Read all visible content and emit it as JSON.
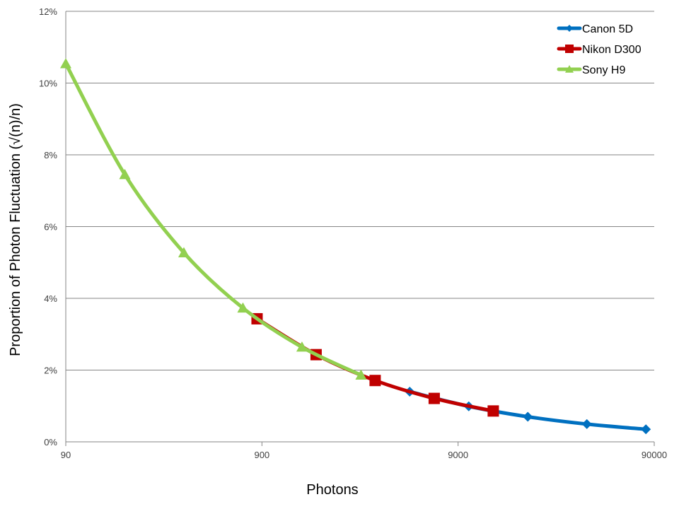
{
  "chart_data": {
    "type": "line",
    "title": "",
    "xlabel": "Photons",
    "ylabel": "Proportion of Photon Fluctuation (√(n)/n)",
    "x_scale": "log",
    "xlim": [
      90,
      90000
    ],
    "ylim": [
      0,
      0.12
    ],
    "x_ticks": [
      90,
      900,
      9000,
      90000
    ],
    "x_tick_labels": [
      "90",
      "900",
      "9000",
      "90000"
    ],
    "y_ticks": [
      0,
      0.02,
      0.04,
      0.06,
      0.08,
      0.1,
      0.12
    ],
    "y_tick_labels": [
      "0%",
      "2%",
      "4%",
      "6%",
      "8%",
      "10%",
      "12%"
    ],
    "grid": "horizontal",
    "legend_position": "top-right",
    "series": [
      {
        "name": "Canon 5D",
        "color": "#0070C0",
        "marker": "diamond",
        "points": [
          {
            "x": 5100,
            "y": 0.014
          },
          {
            "x": 10200,
            "y": 0.0099
          },
          {
            "x": 20400,
            "y": 0.007
          },
          {
            "x": 40800,
            "y": 0.00495
          },
          {
            "x": 81600,
            "y": 0.0035
          }
        ]
      },
      {
        "name": "Nikon D300",
        "color": "#C00000",
        "marker": "square",
        "points": [
          {
            "x": 850,
            "y": 0.0343
          },
          {
            "x": 1700,
            "y": 0.0243
          },
          {
            "x": 3400,
            "y": 0.0171
          },
          {
            "x": 6800,
            "y": 0.0121
          },
          {
            "x": 13600,
            "y": 0.0086
          }
        ]
      },
      {
        "name": "Sony H9",
        "color": "#92D050",
        "marker": "triangle",
        "points": [
          {
            "x": 90,
            "y": 0.1054
          },
          {
            "x": 180,
            "y": 0.0745
          },
          {
            "x": 360,
            "y": 0.0527
          },
          {
            "x": 720,
            "y": 0.0373
          },
          {
            "x": 1440,
            "y": 0.0264
          },
          {
            "x": 2880,
            "y": 0.0186
          }
        ]
      }
    ]
  }
}
